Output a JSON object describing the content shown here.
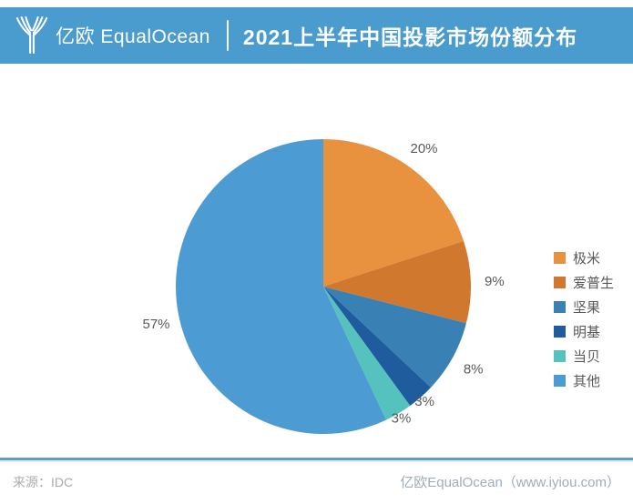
{
  "header": {
    "logo_text": "亿欧 EqualOcean",
    "title": "2021上半年中国投影市场份额分布",
    "bg_color": "#4A9BCE",
    "text_color": "#ffffff"
  },
  "chart_data": {
    "type": "pie",
    "title": "2021上半年中国投影市场份额分布",
    "start_angle_deg": 0,
    "direction": "clockwise",
    "legend_position": "right",
    "slices": [
      {
        "name": "极米",
        "value": 20,
        "label": "20%",
        "color": "#E8913F"
      },
      {
        "name": "爱普生",
        "value": 9,
        "label": "9%",
        "color": "#D1782F"
      },
      {
        "name": "坚果",
        "value": 8,
        "label": "8%",
        "color": "#3981B5"
      },
      {
        "name": "明基",
        "value": 3,
        "label": "3%",
        "color": "#1F5C9E"
      },
      {
        "name": "当贝",
        "value": 3,
        "label": "3%",
        "color": "#55C2BD"
      },
      {
        "name": "其他",
        "value": 57,
        "label": "57%",
        "color": "#4C9BD3"
      }
    ]
  },
  "footer": {
    "source": "来源：IDC",
    "credit": "亿欧EqualOcean（www.iyiou.com）"
  }
}
